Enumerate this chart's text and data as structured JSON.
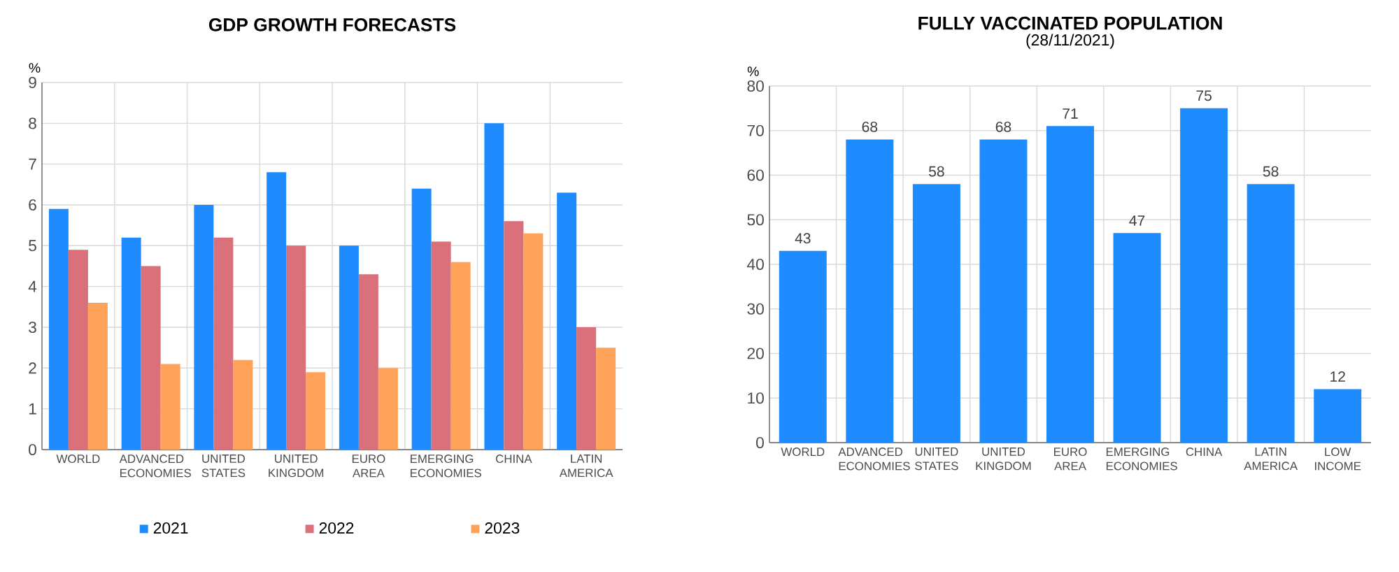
{
  "chart_data": [
    {
      "type": "bar",
      "title": "GDP GROWTH FORECASTS",
      "ylabel": "%",
      "categories": [
        "WORLD",
        "ADVANCED ECONOMIES",
        "UNITED STATES",
        "UNITED KINGDOM",
        "EURO AREA",
        "EMERGING ECONOMIES",
        "CHINA",
        "LATIN AMERICA"
      ],
      "series": [
        {
          "name": "2021",
          "color": "#1e8cff",
          "values": [
            5.9,
            5.2,
            6.0,
            6.8,
            5.0,
            6.4,
            8.0,
            6.3
          ]
        },
        {
          "name": "2022",
          "color": "#d9707a",
          "values": [
            4.9,
            4.5,
            5.2,
            5.0,
            4.3,
            5.1,
            5.6,
            3.0
          ]
        },
        {
          "name": "2023",
          "color": "#ffa25a",
          "values": [
            3.6,
            2.1,
            2.2,
            1.9,
            2.0,
            4.6,
            5.3,
            2.5
          ]
        }
      ],
      "ylim": [
        0,
        9
      ],
      "yticks": [
        0,
        1,
        2,
        3,
        4,
        5,
        6,
        7,
        8,
        9
      ],
      "grid": true,
      "legend": "bottom"
    },
    {
      "type": "bar",
      "title": "FULLY VACCINATED POPULATION",
      "subtitle": "(28/11/2021)",
      "ylabel": "%",
      "categories": [
        "WORLD",
        "ADVANCED ECONOMIES",
        "UNITED STATES",
        "UNITED KINGDOM",
        "EURO AREA",
        "EMERGING ECONOMIES",
        "CHINA",
        "LATIN AMERICA",
        "LOW INCOME"
      ],
      "values": [
        43,
        68,
        58,
        68,
        71,
        47,
        75,
        58,
        12
      ],
      "color": "#1e8cff",
      "data_labels": true,
      "ylim": [
        0,
        80
      ],
      "yticks": [
        0,
        10,
        20,
        30,
        40,
        50,
        60,
        70,
        80
      ],
      "grid": true,
      "legend": false
    }
  ]
}
